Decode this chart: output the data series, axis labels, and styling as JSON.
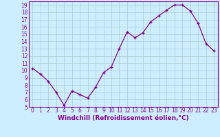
{
  "x": [
    0,
    1,
    2,
    3,
    4,
    5,
    6,
    7,
    8,
    9,
    10,
    11,
    12,
    13,
    14,
    15,
    16,
    17,
    18,
    19,
    20,
    21,
    22,
    23
  ],
  "y": [
    10.3,
    9.5,
    8.5,
    7.0,
    5.2,
    7.2,
    6.7,
    6.2,
    7.7,
    9.7,
    10.5,
    13.0,
    15.3,
    14.5,
    15.2,
    16.7,
    17.5,
    18.3,
    19.0,
    19.0,
    18.2,
    16.5,
    13.7,
    12.7
  ],
  "line_color": "#880088",
  "marker": "+",
  "marker_color": "#880088",
  "bg_color": "#cceeff",
  "grid_color": "#aacccc",
  "xlabel": "Windchill (Refroidissement éolien,°C)",
  "ylim": [
    5,
    19.5
  ],
  "xlim": [
    -0.5,
    23.5
  ],
  "yticks": [
    5,
    6,
    7,
    8,
    9,
    10,
    11,
    12,
    13,
    14,
    15,
    16,
    17,
    18,
    19
  ],
  "xticks": [
    0,
    1,
    2,
    3,
    4,
    5,
    6,
    7,
    8,
    9,
    10,
    11,
    12,
    13,
    14,
    15,
    16,
    17,
    18,
    19,
    20,
    21,
    22,
    23
  ],
  "tick_fontsize": 5.5,
  "xlabel_fontsize": 6.5,
  "line_width": 0.9,
  "marker_size": 3.5
}
